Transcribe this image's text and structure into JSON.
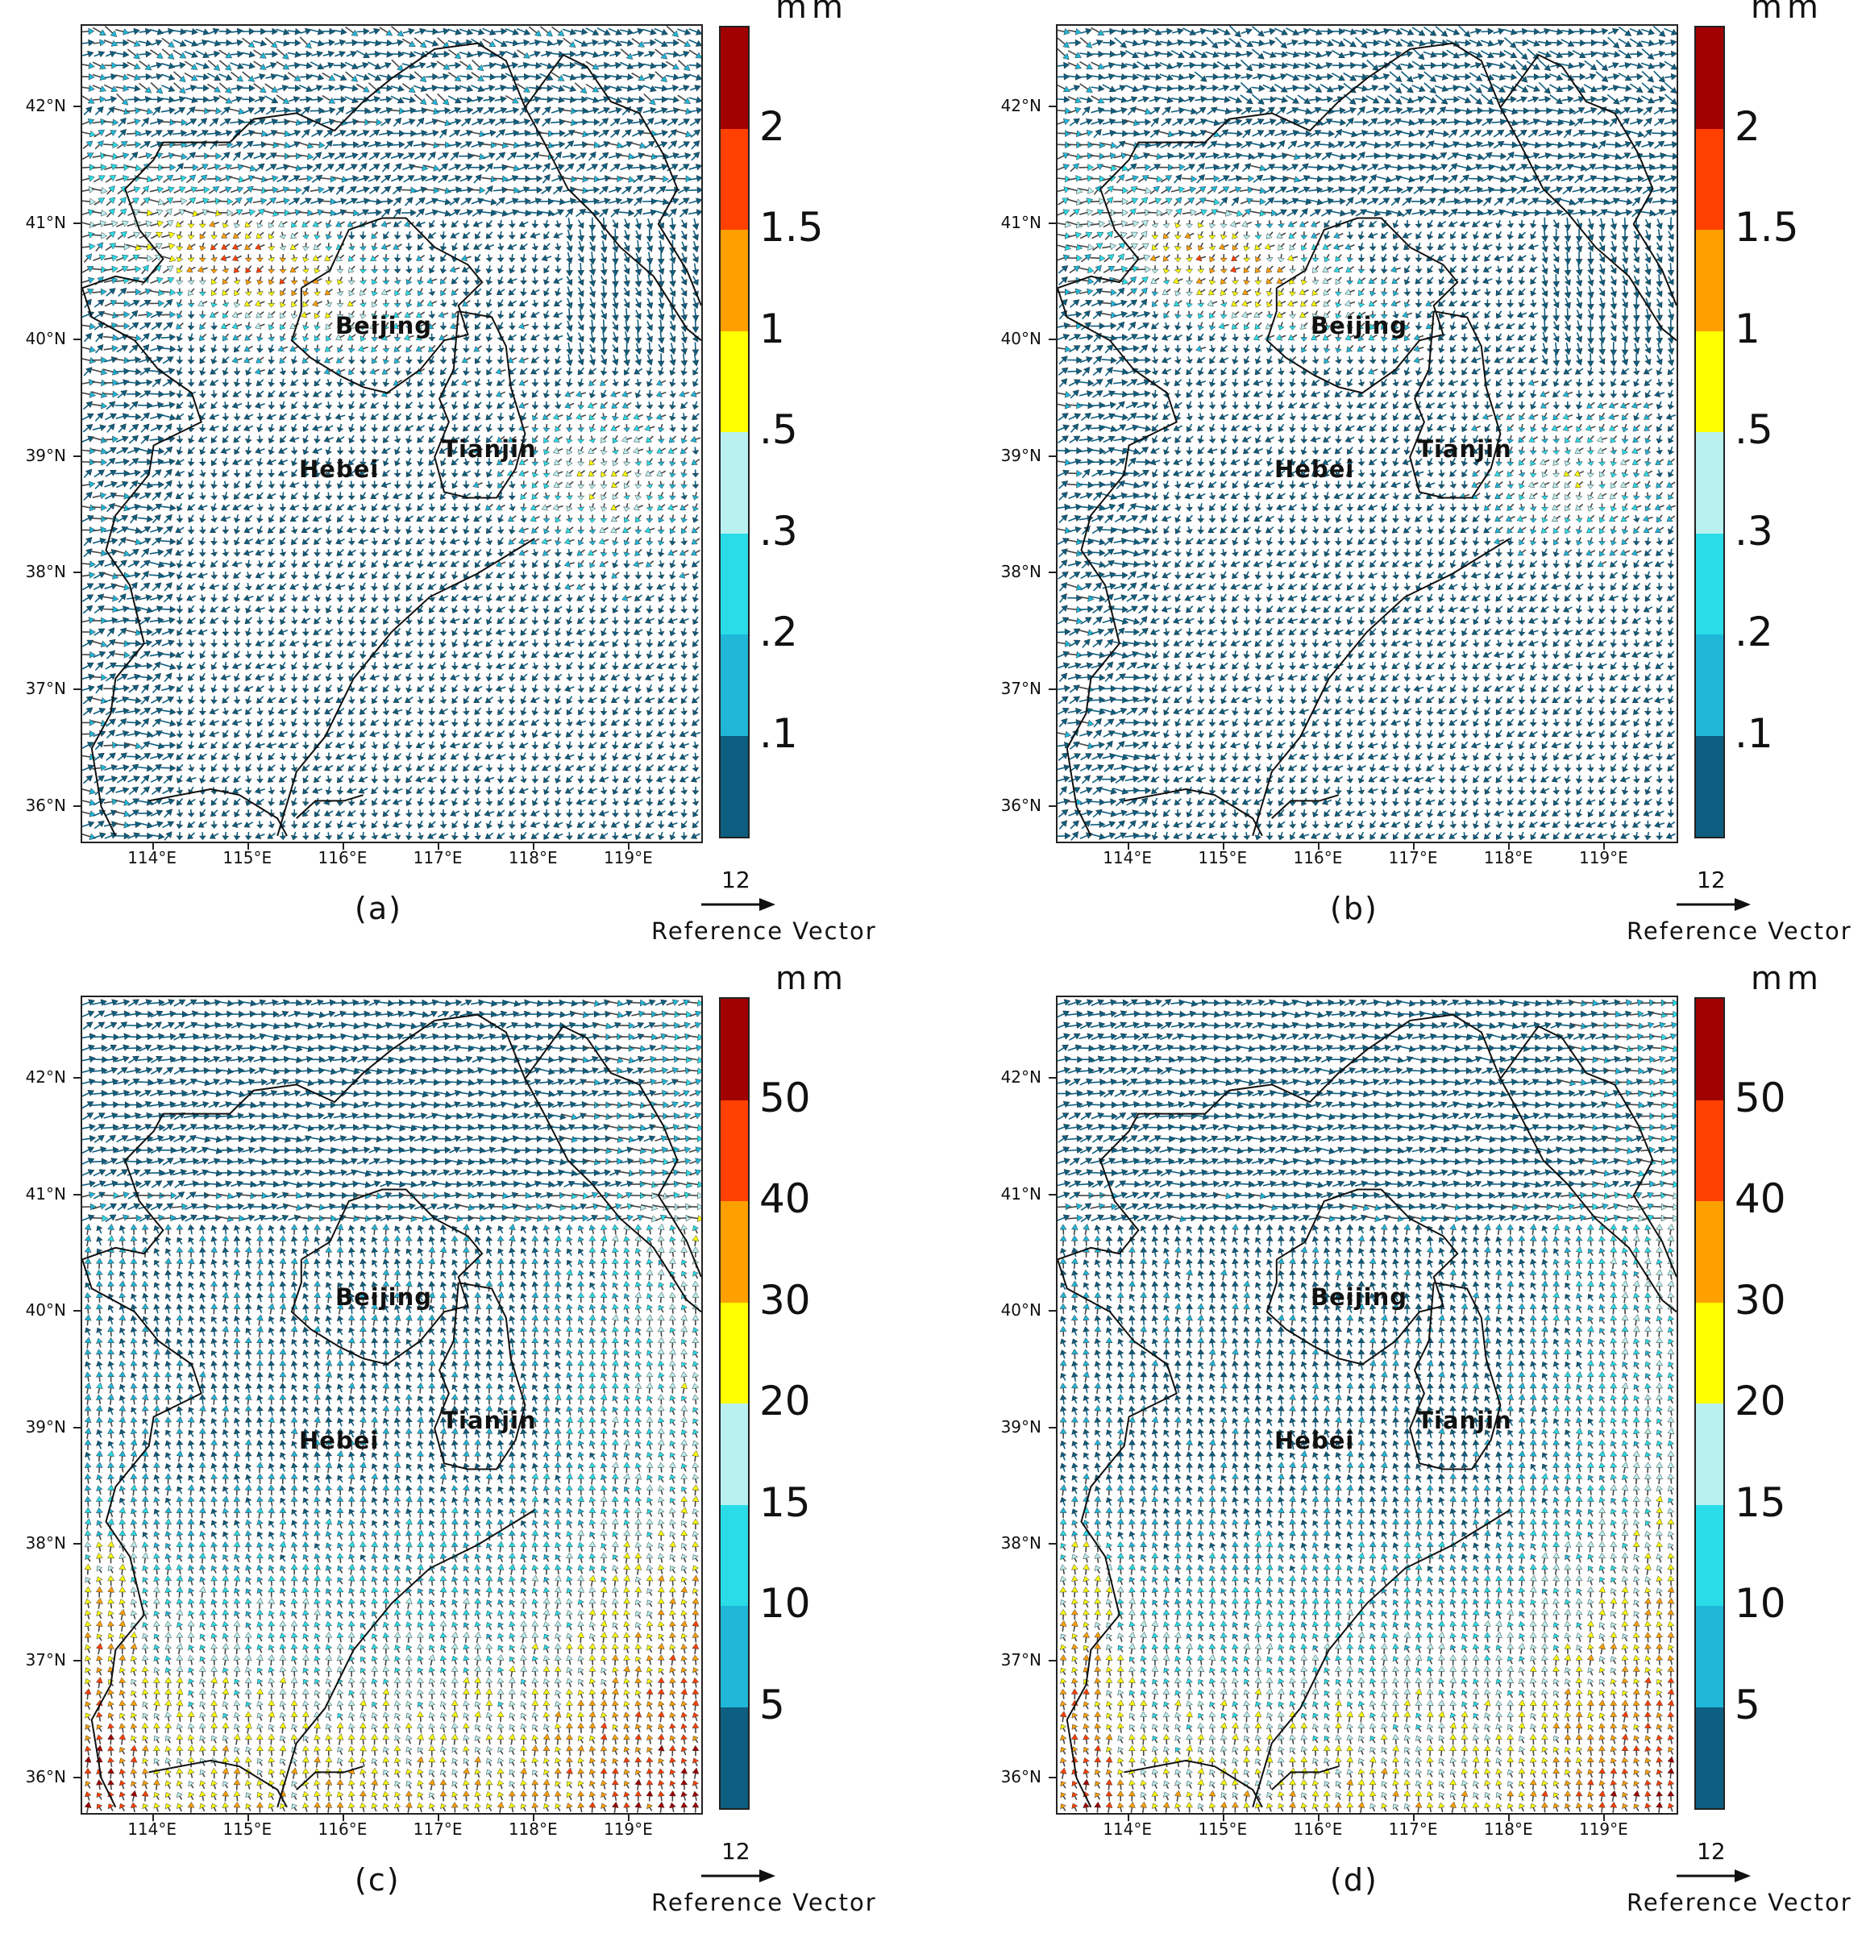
{
  "map": {
    "lon_range": [
      113.25,
      119.75
    ],
    "lat_range": [
      35.7,
      42.7
    ],
    "lon_ticks": [
      "114°E",
      "115°E",
      "116°E",
      "117°E",
      "118°E",
      "119°E"
    ],
    "lat_ticks": [
      "42°N",
      "41°N",
      "40°N",
      "39°N",
      "38°N",
      "37°N",
      "36°N"
    ],
    "places": [
      {
        "name": "Beijing",
        "lon": 116.5,
        "lat": 40.12
      },
      {
        "name": "Tianjin",
        "lon": 117.45,
        "lat": 39.05
      },
      {
        "name": "Hebei",
        "lon": 115.95,
        "lat": 38.9
      }
    ],
    "vector_ref_value": "12",
    "vector_ref_label": "Reference Vector",
    "vector_colors": [
      "#0d5e80",
      "#1fb6d8",
      "#29dce8",
      "#b9f1f1",
      "#ffff00",
      "#ffa000",
      "#ff4000",
      "#a10000"
    ],
    "legend_unit": "mm"
  },
  "panels": [
    {
      "label": "(a)",
      "legend_labels": [
        "2",
        "1.5",
        "1",
        ".5",
        ".3",
        ".2",
        ".1"
      ],
      "pattern": "north"
    },
    {
      "label": "(b)",
      "legend_labels": [
        "2",
        "1.5",
        "1",
        ".5",
        ".3",
        ".2",
        ".1"
      ],
      "pattern": "north2"
    },
    {
      "label": "(c)",
      "legend_labels": [
        "50",
        "40",
        "30",
        "20",
        "15",
        "10",
        "5"
      ],
      "pattern": "south"
    },
    {
      "label": "(d)",
      "legend_labels": [
        "50",
        "40",
        "30",
        "20",
        "15",
        "10",
        "5"
      ],
      "pattern": "south2"
    }
  ]
}
